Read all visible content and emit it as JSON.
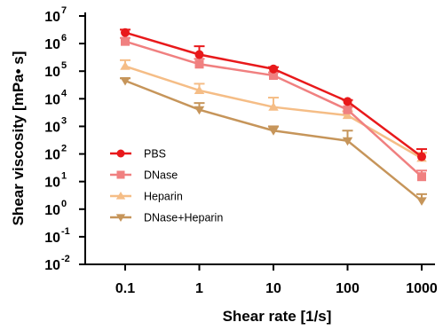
{
  "chart_data": {
    "type": "line",
    "xlabel": "Shear rate [1/s]",
    "ylabel": "Shear viscosity [mPa• s]",
    "x_scale": "log",
    "y_scale": "log",
    "x": [
      0.1,
      1,
      10,
      100,
      1000
    ],
    "x_tick_labels": [
      "0.1",
      "1",
      "10",
      "100",
      "1000"
    ],
    "y_ticks": [
      {
        "value": 0.01,
        "base": "10",
        "exp": "-2"
      },
      {
        "value": 0.1,
        "base": "10",
        "exp": "-1"
      },
      {
        "value": 1,
        "base": "10",
        "exp": "0"
      },
      {
        "value": 10,
        "base": "10",
        "exp": "1"
      },
      {
        "value": 100,
        "base": "10",
        "exp": "2"
      },
      {
        "value": 1000,
        "base": "10",
        "exp": "3"
      },
      {
        "value": 10000,
        "base": "10",
        "exp": "4"
      },
      {
        "value": 100000,
        "base": "10",
        "exp": "5"
      },
      {
        "value": 1000000,
        "base": "10",
        "exp": "6"
      },
      {
        "value": 10000000,
        "base": "10",
        "exp": "7"
      }
    ],
    "ylim": [
      0.01,
      10000000
    ],
    "legend_position": "lower-left",
    "grid": false,
    "series": [
      {
        "name": "PBS",
        "color": "#e8191b",
        "marker": "circle",
        "values": [
          2500000,
          400000,
          120000,
          8000,
          80
        ],
        "err_upper": [
          3200000,
          800000,
          140000,
          9000,
          150
        ]
      },
      {
        "name": "DNase",
        "color": "#f08080",
        "marker": "square",
        "values": [
          1200000,
          180000,
          70000,
          4000,
          15
        ],
        "err_upper": [
          1600000,
          280000,
          90000,
          5000,
          25
        ]
      },
      {
        "name": "Heparin",
        "color": "#f5bd86",
        "marker": "triangle-up",
        "values": [
          150000,
          20000,
          5000,
          2500,
          70
        ],
        "err_upper": [
          250000,
          35000,
          11000,
          3500,
          110
        ]
      },
      {
        "name": "DNase+Heparin",
        "color": "#c6955a",
        "marker": "triangle-down",
        "values": [
          45000,
          4000,
          700,
          300,
          2
        ],
        "err_upper": [
          55000,
          7000,
          1000,
          700,
          3.5
        ]
      }
    ]
  }
}
